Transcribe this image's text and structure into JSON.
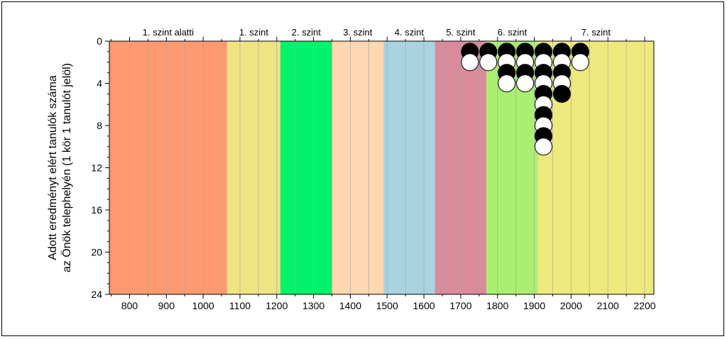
{
  "chart_data": {
    "type": "scatter",
    "ylabel_line1": "Adott eredményt elért tanulók száma",
    "ylabel_line2": "az Önök telephelyén (1 kör 1 tanulót jelöl)",
    "xlim": [
      745,
      2225
    ],
    "ylim": [
      0,
      24
    ],
    "y_inverted": true,
    "x_ticks": [
      800,
      900,
      1000,
      1100,
      1200,
      1300,
      1400,
      1500,
      1600,
      1700,
      1800,
      1900,
      2000,
      2100,
      2200
    ],
    "y_ticks": [
      0,
      4,
      8,
      12,
      16,
      20,
      24
    ],
    "bands": [
      {
        "name": "1. szint alatti",
        "from": 745,
        "to": 1065,
        "color": "#ff9a70"
      },
      {
        "name": "1. szint",
        "from": 1065,
        "to": 1210,
        "color": "#f0e382"
      },
      {
        "name": "2. szint",
        "from": 1210,
        "to": 1350,
        "color": "#00f36a"
      },
      {
        "name": "3. szint",
        "from": 1350,
        "to": 1490,
        "color": "#ffd7b0"
      },
      {
        "name": "4. szint",
        "from": 1490,
        "to": 1630,
        "color": "#a9d3e1"
      },
      {
        "name": "5. szint",
        "from": 1630,
        "to": 1770,
        "color": "#d98a9b"
      },
      {
        "name": "6. szint",
        "from": 1770,
        "to": 1910,
        "color": "#aaef72"
      },
      {
        "name": "7. szint",
        "from": 1910,
        "to": 2225,
        "color": "#eee97c"
      }
    ],
    "columns": [
      {
        "x": 1725,
        "count": 2
      },
      {
        "x": 1775,
        "count": 2
      },
      {
        "x": 1825,
        "count": 4
      },
      {
        "x": 1875,
        "count": 4
      },
      {
        "x": 1925,
        "count": 10
      },
      {
        "x": 1975,
        "count": 5
      },
      {
        "x": 2025,
        "count": 2
      }
    ],
    "marker_colors": {
      "odd": "#000000",
      "even": "#ffffff"
    }
  }
}
